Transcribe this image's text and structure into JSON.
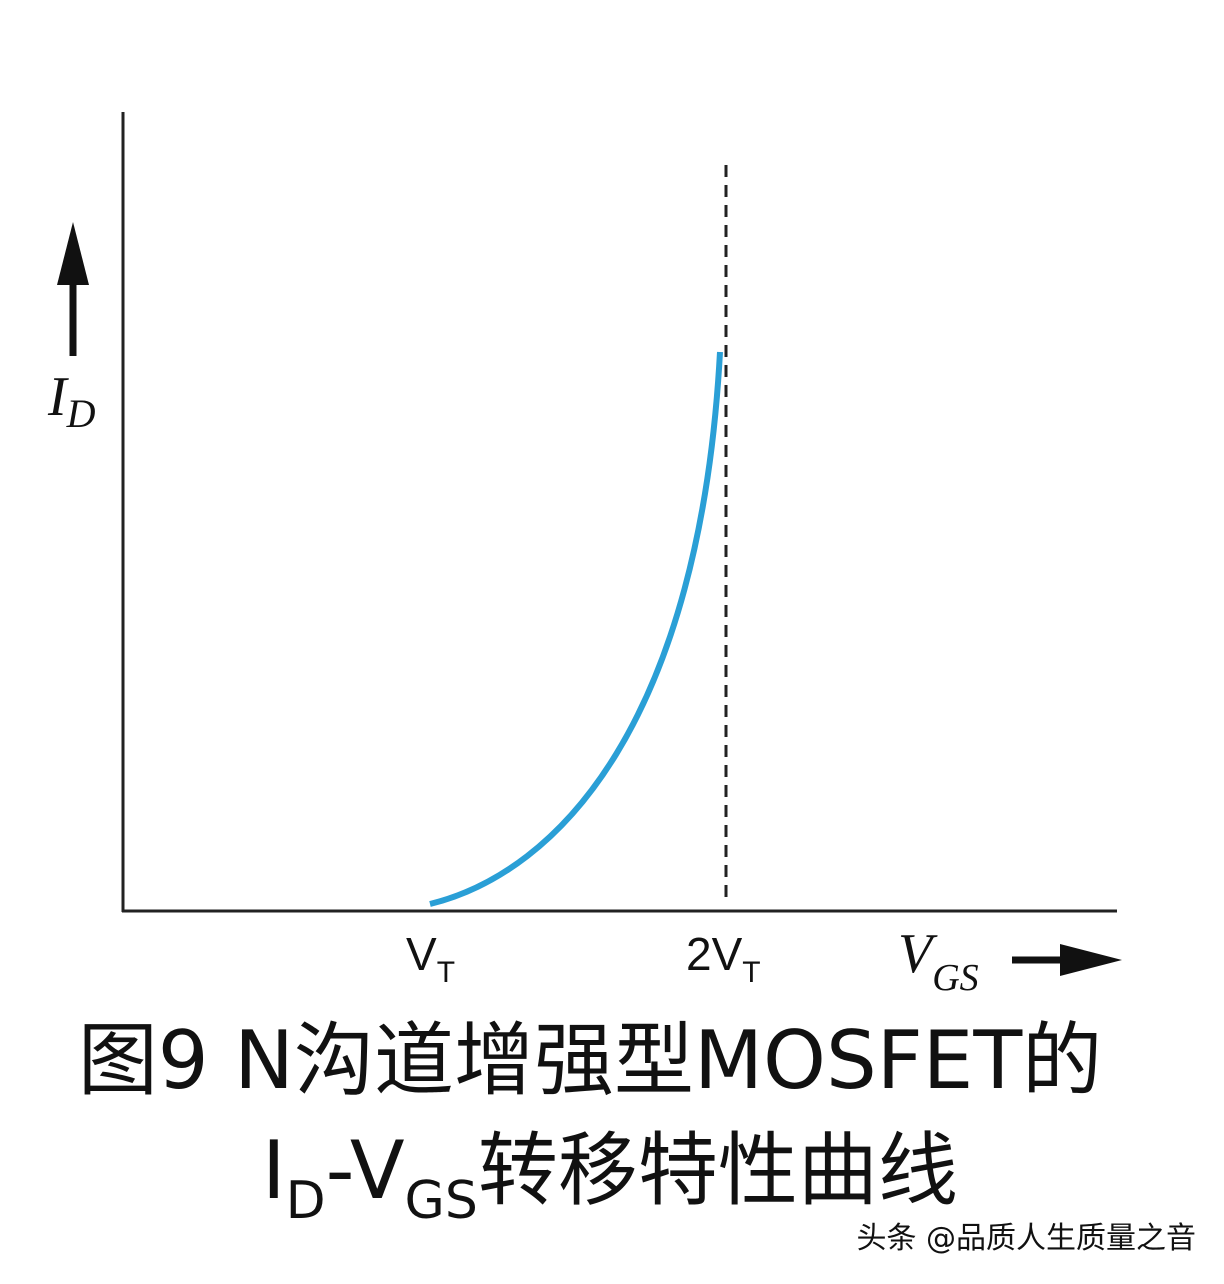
{
  "axes": {
    "y_label": {
      "main": "I",
      "sub": "D"
    },
    "x_label": {
      "main": "V",
      "sub": "GS"
    }
  },
  "ticks": [
    {
      "main": "V",
      "sub": "T"
    },
    {
      "main": "2V",
      "sub": "T"
    }
  ],
  "caption": {
    "line1": "图9 N沟道增强型MOSFET的",
    "line2": {
      "i": "I",
      "d": "D",
      "dash_v": "-V",
      "gs": "GS",
      "rest": "转移特性曲线"
    }
  },
  "watermark": "头条 @品质人生质量之音"
}
